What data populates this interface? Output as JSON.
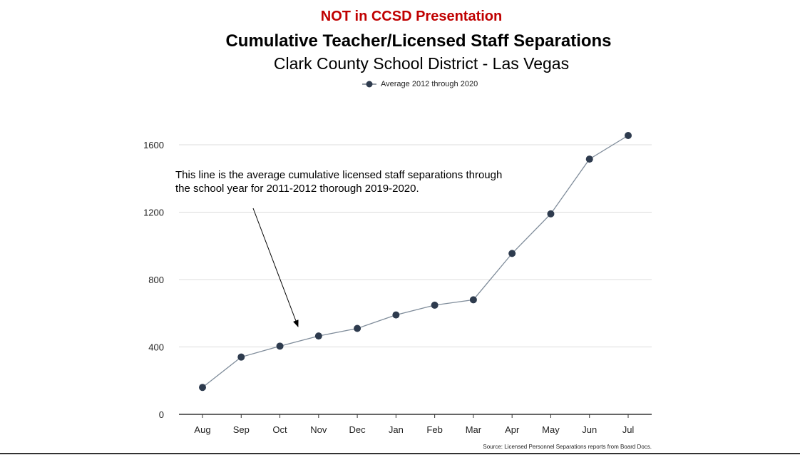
{
  "header": {
    "notice": "NOT in CCSD Presentation",
    "notice_color": "#c00000"
  },
  "chart_data": {
    "type": "line",
    "title": "Cumulative Teacher/Licensed Staff Separations",
    "subtitle": "Clark County School District - Las Vegas",
    "categories": [
      "Aug",
      "Sep",
      "Oct",
      "Nov",
      "Dec",
      "Jan",
      "Feb",
      "Mar",
      "Apr",
      "May",
      "Jun",
      "Jul"
    ],
    "series": [
      {
        "name": "Average 2012 through 2020",
        "values": [
          160,
          340,
          405,
          465,
          510,
          590,
          648,
          680,
          955,
          1190,
          1515,
          1655
        ],
        "color": "#2e3b4e"
      }
    ],
    "yticks": [
      0,
      400,
      800,
      1200,
      1600
    ],
    "ylim": [
      0,
      1700
    ],
    "grid": true,
    "legend_position": "top",
    "annotation": "This line is the average cumulative licensed staff separations through the school year for 2011-2012 thorough 2019-2020.",
    "source": "Source: Licensed Personnel Separations reports from Board Docs."
  }
}
